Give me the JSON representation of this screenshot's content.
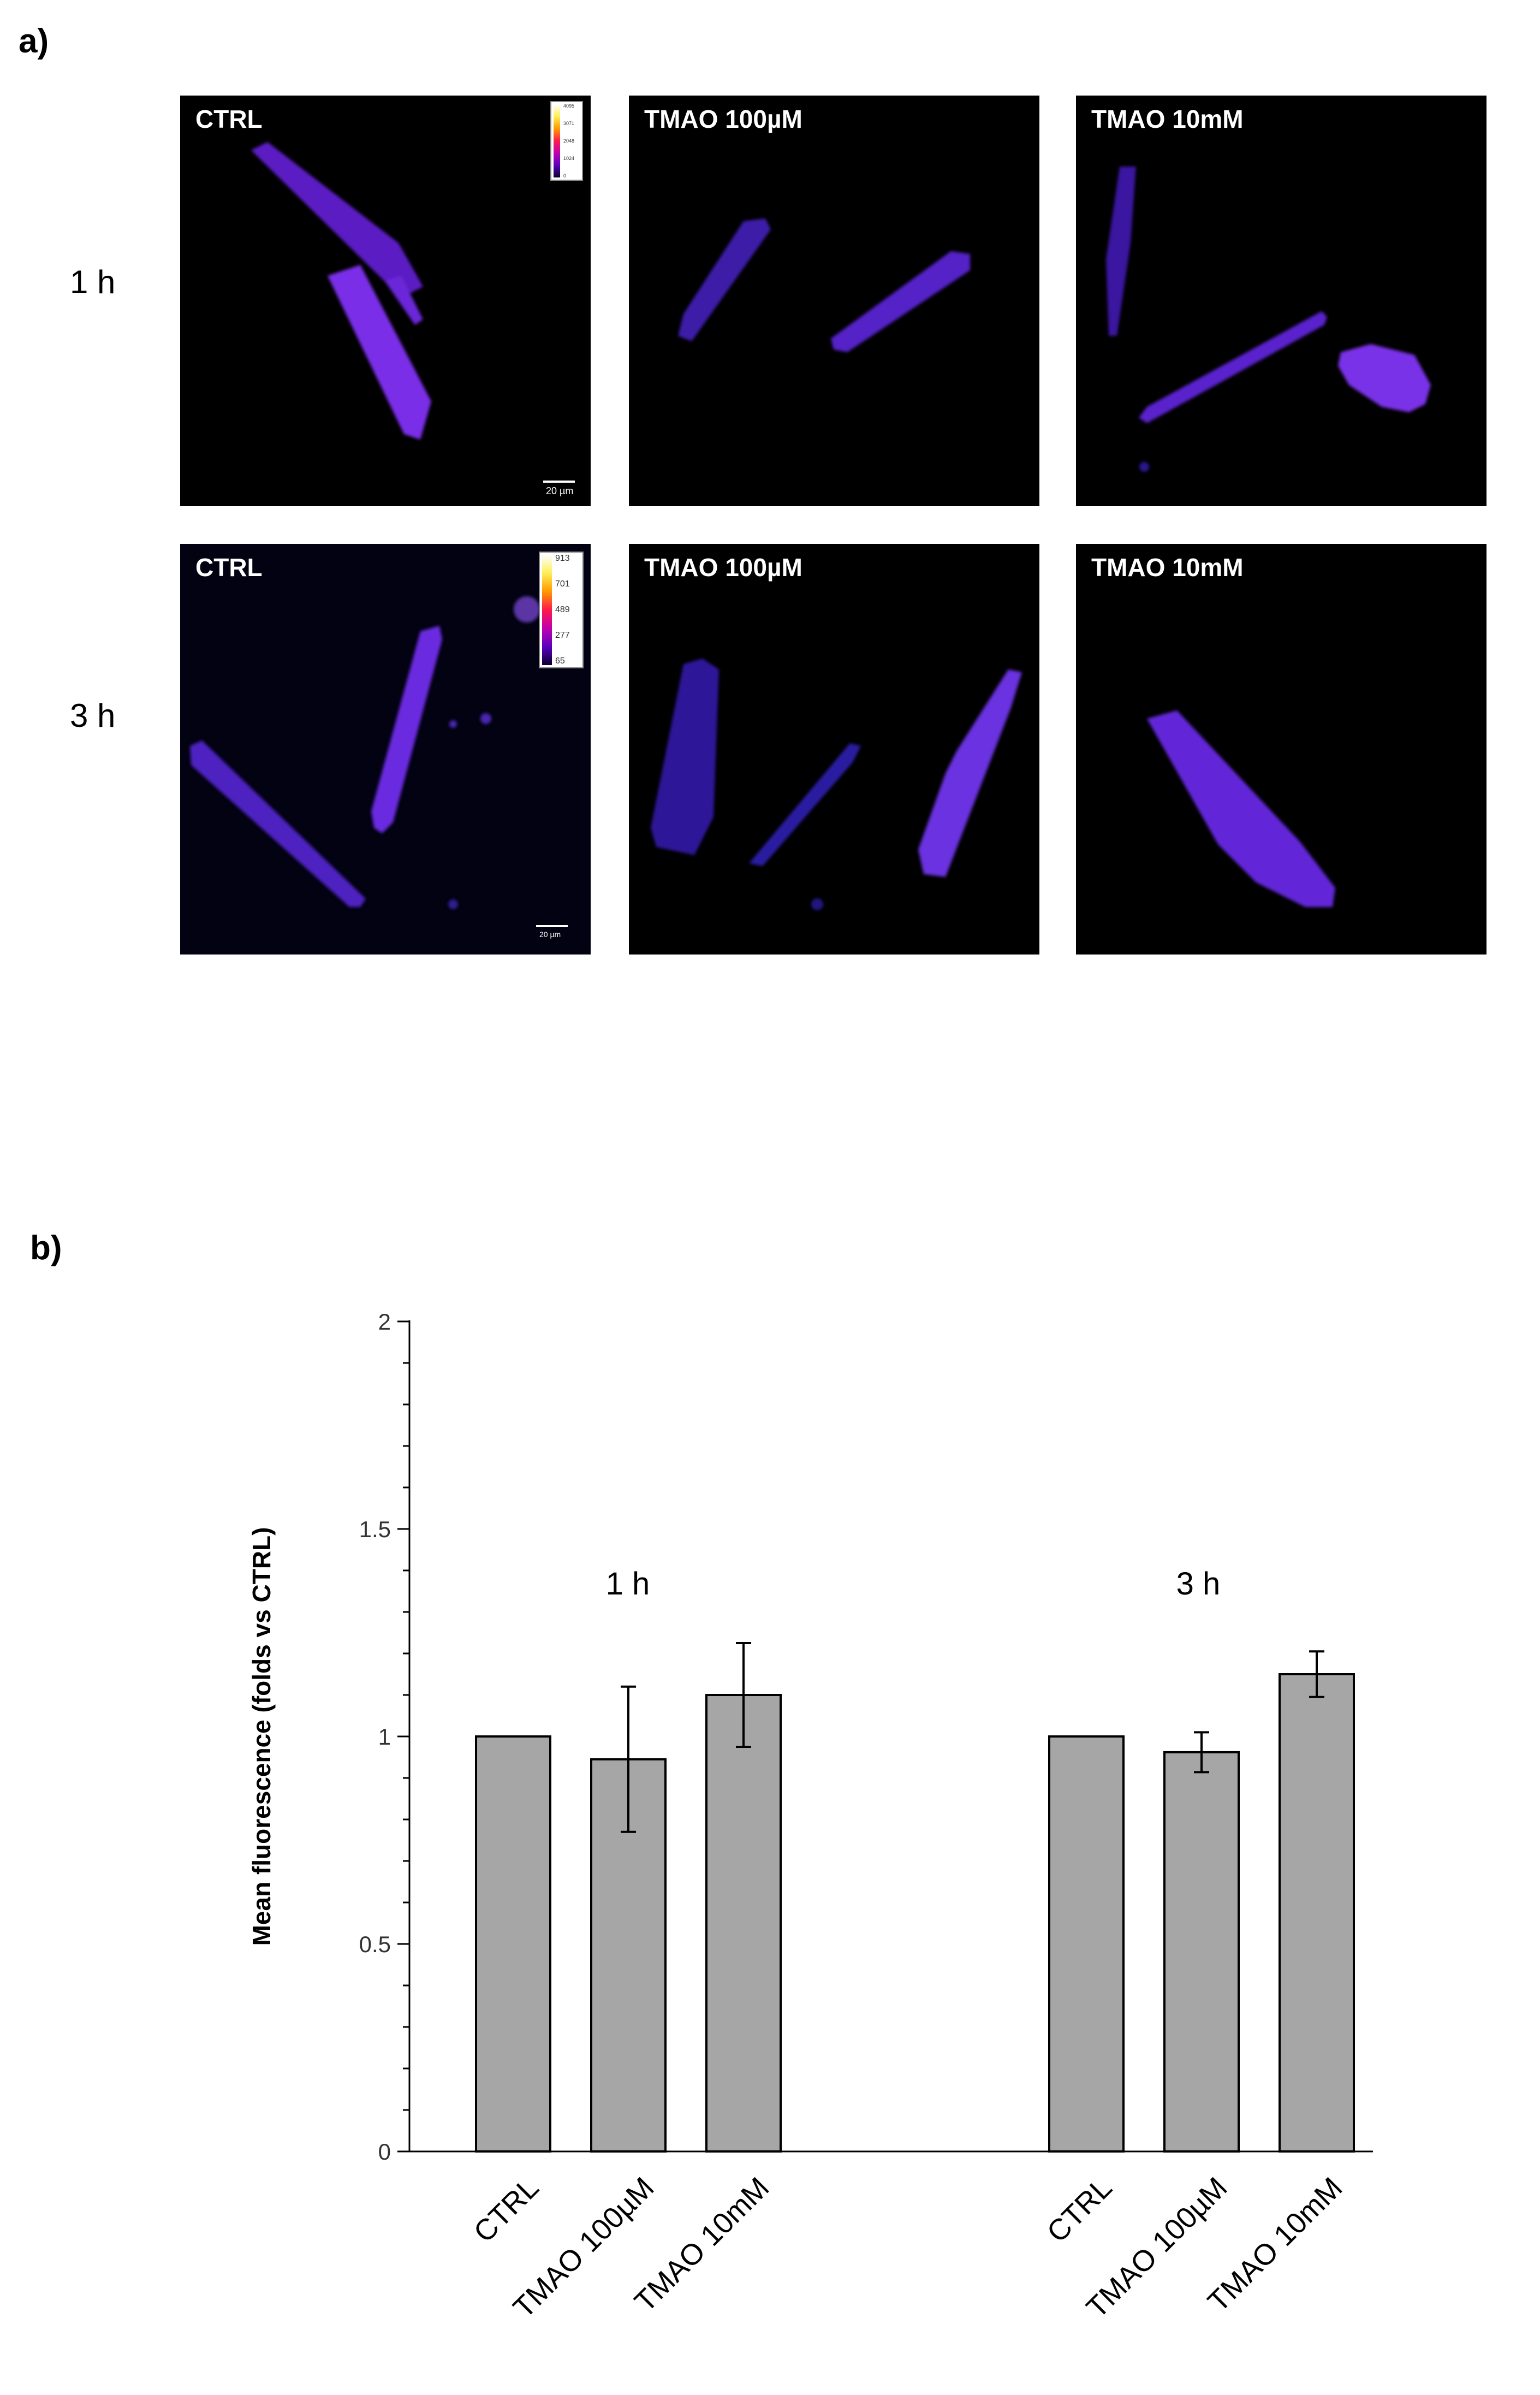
{
  "panel_a": {
    "letter": "a)",
    "rows": [
      {
        "label": "1 h",
        "images": [
          {
            "title": "CTRL",
            "lut": [
              "4095",
              "3071",
              "2048",
              "1024",
              "0"
            ],
            "scale": "20 µm"
          },
          {
            "title": "TMAO 100µM"
          },
          {
            "title": "TMAO 10mM"
          }
        ]
      },
      {
        "label": "3 h",
        "images": [
          {
            "title": "CTRL",
            "lut": [
              "913",
              "701",
              "489",
              "277",
              "65"
            ],
            "scale": "20 µm"
          },
          {
            "title": "TMAO 100µM"
          },
          {
            "title": "TMAO 10mM"
          }
        ]
      }
    ]
  },
  "panel_b": {
    "letter": "b)"
  },
  "chart_data": {
    "type": "bar",
    "title": "",
    "xlabel": "",
    "ylabel": "Mean fluorescence (folds vs CTRL)",
    "ylim": [
      0,
      2
    ],
    "yticks": [
      "0",
      "0.5",
      "1",
      "1.5",
      "2"
    ],
    "bar_color": "#a6a6a6",
    "groups": [
      {
        "label": "1 h",
        "categories": [
          "CTRL",
          "TMAO 100µM",
          "TMAO 10mM"
        ],
        "values": [
          1.0,
          0.945,
          1.1
        ],
        "errors": [
          0,
          0.175,
          0.125
        ]
      },
      {
        "label": "3 h",
        "categories": [
          "CTRL",
          "TMAO 100µM",
          "TMAO 10mM"
        ],
        "values": [
          1.0,
          0.962,
          1.15
        ],
        "errors": [
          0,
          0.048,
          0.055
        ]
      }
    ],
    "grid": false,
    "legend": "none"
  }
}
